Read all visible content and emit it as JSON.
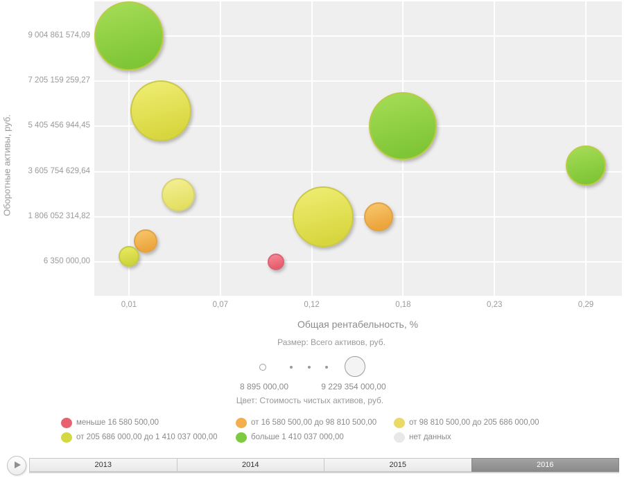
{
  "chart_data": {
    "type": "scatter",
    "subtype": "bubble",
    "xlabel": "Общая рентабельность, %",
    "ylabel": "Оборотные активы, руб.",
    "x_tick_labels": [
      "0,01",
      "0,07",
      "0,12",
      "0,18",
      "0,23",
      "0,29"
    ],
    "y_tick_labels": [
      "6 350 000,00",
      "1 806 052 314,82",
      "3 605 754 629,64",
      "5 405 456 944,45",
      "7 205 159 259,27",
      "9 004 861 574,09"
    ],
    "x_range": [
      0.01,
      0.29
    ],
    "y_range": [
      6350000,
      9004861574.09
    ],
    "grid": true,
    "points": [
      {
        "x": 0.01,
        "y": 9004861574.09,
        "r": 48,
        "color": "green"
      },
      {
        "x": 0.0295,
        "y": 6030000000,
        "r": 42,
        "color": "yellow"
      },
      {
        "x": 0.04,
        "y": 2690000000,
        "r": 22,
        "color": "lightyellow"
      },
      {
        "x": 0.02,
        "y": 840000000,
        "r": 15,
        "color": "orange"
      },
      {
        "x": 0.01,
        "y": 230000000,
        "r": 13,
        "color": "yellowgreen"
      },
      {
        "x": 0.129,
        "y": 1806052314.82,
        "r": 42,
        "color": "yellow"
      },
      {
        "x": 0.163,
        "y": 1810000000,
        "r": 19,
        "color": "orange"
      },
      {
        "x": 0.1,
        "y": 6350000,
        "r": 10,
        "color": "red"
      },
      {
        "x": 0.178,
        "y": 5405456944.45,
        "r": 47,
        "color": "green"
      },
      {
        "x": 0.29,
        "y": 3850000000,
        "r": 27,
        "color": "green"
      }
    ],
    "size_legend": {
      "title": "Размер: Всего активов, руб.",
      "min_label": "8 895 000,00",
      "max_label": "9 229 354 000,00"
    },
    "color_legend": {
      "title": "Цвет: Стоимость чистых активов, руб.",
      "items": [
        {
          "key": "red",
          "hex": "#e8616e",
          "label": "меньше 16 580 500,00"
        },
        {
          "key": "orange",
          "hex": "#f4ae4d",
          "label": "от 16 580 500,00 до 98 810 500,00"
        },
        {
          "key": "yellow",
          "hex": "#ead964",
          "label": "от 98 810 500,00 до 205 686 000,00"
        },
        {
          "key": "yellowgreen",
          "hex": "#d2d945",
          "label": "от 205 686 000,00 до 1 410 037 000,00"
        },
        {
          "key": "green",
          "hex": "#7ecb41",
          "label": "больше 1 410 037 000,00"
        },
        {
          "key": "gray",
          "hex": "#e8e8e8",
          "label": "нет данных"
        }
      ]
    }
  },
  "timeline": {
    "years": [
      "2013",
      "2014",
      "2015",
      "2016"
    ],
    "selected": "2016"
  }
}
